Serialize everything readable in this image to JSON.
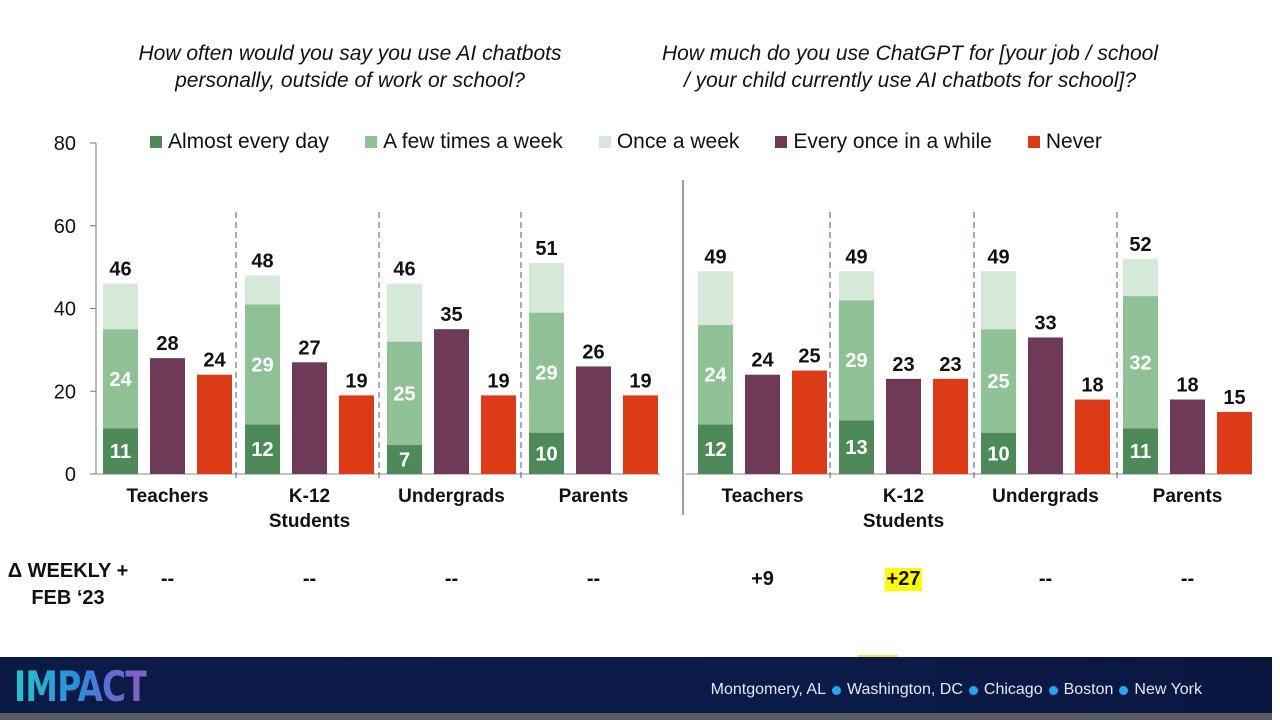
{
  "chart_data": {
    "type": "bar",
    "subtype": "grouped-stacked",
    "ylim": [
      0,
      80
    ],
    "yticks": [
      0,
      20,
      40,
      60,
      80
    ],
    "legend": [
      {
        "label": "Almost every day",
        "color": "#4e8a59"
      },
      {
        "label": "A few times a week",
        "color": "#8fc096"
      },
      {
        "label": "Once a week",
        "color": "#d6e8d8"
      },
      {
        "label": "Every once in a while",
        "color": "#6e3a58"
      },
      {
        "label": "Never",
        "color": "#db3b16"
      }
    ],
    "legend_position": "top",
    "panels": [
      {
        "title": "How often would you say you use AI chatbots personally, outside of work or school?",
        "title_lines": [
          "How often would you say you use AI chatbots",
          "personally, outside of work or school?"
        ],
        "groups": [
          {
            "label": [
              "Teachers"
            ],
            "almost_every_day": 11,
            "few_times_week": 24,
            "weekly_total": 46,
            "every_once_in_a_while": 28,
            "never": 24
          },
          {
            "label": [
              "K-12",
              "Students"
            ],
            "almost_every_day": 12,
            "few_times_week": 29,
            "weekly_total": 48,
            "every_once_in_a_while": 27,
            "never": 19
          },
          {
            "label": [
              "Undergrads"
            ],
            "almost_every_day": 7,
            "few_times_week": 25,
            "weekly_total": 46,
            "every_once_in_a_while": 35,
            "never": 19
          },
          {
            "label": [
              "Parents"
            ],
            "almost_every_day": 10,
            "few_times_week": 29,
            "weekly_total": 51,
            "every_once_in_a_while": 26,
            "never": 19
          }
        ]
      },
      {
        "title": "How much do you use ChatGPT for [your job / school / your child currently use AI chatbots for school]?",
        "title_lines": [
          "How much do you use ChatGPT for [your job / school",
          "/ your child currently use AI chatbots for school]?"
        ],
        "groups": [
          {
            "label": [
              "Teachers"
            ],
            "almost_every_day": 12,
            "few_times_week": 24,
            "weekly_total": 49,
            "every_once_in_a_while": 24,
            "never": 25
          },
          {
            "label": [
              "K-12",
              "Students"
            ],
            "almost_every_day": 13,
            "few_times_week": 29,
            "weekly_total": 49,
            "every_once_in_a_while": 23,
            "never": 23
          },
          {
            "label": [
              "Undergrads"
            ],
            "almost_every_day": 10,
            "few_times_week": 25,
            "weekly_total": 49,
            "every_once_in_a_while": 33,
            "never": 18
          },
          {
            "label": [
              "Parents"
            ],
            "almost_every_day": 11,
            "few_times_week": 32,
            "weekly_total": 52,
            "every_once_in_a_while": 18,
            "never": 15
          }
        ]
      }
    ]
  },
  "delta_row": {
    "label_lines": [
      "Δ WEEKLY +",
      "FEB ‘23"
    ],
    "values": [
      "--",
      "--",
      "--",
      "--",
      "+9",
      "+27",
      "--",
      "--"
    ],
    "highlighted_index": 5,
    "highlight_color": "#ffff00"
  },
  "footer": {
    "logo": "IMPACT",
    "cities": [
      "Montgomery, AL",
      "Washington, DC",
      "Chicago",
      "Boston",
      "New York"
    ]
  }
}
